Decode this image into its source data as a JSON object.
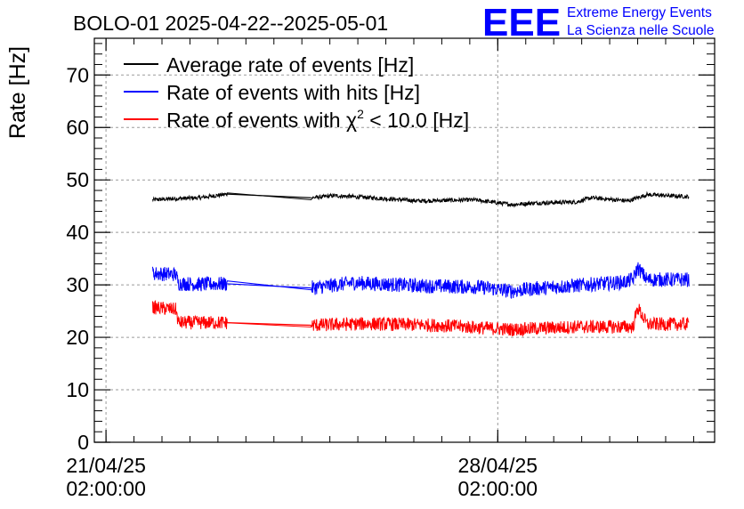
{
  "chart_data": {
    "type": "line",
    "title": "BOLO-01 2025-04-22--2025-05-01",
    "ylabel": "Rate [Hz]",
    "xlabel": "",
    "ylim": [
      0,
      77
    ],
    "yticks": [
      0,
      10,
      20,
      30,
      40,
      50,
      60,
      70
    ],
    "xlim": [
      "2025-04-20T21:00:00",
      "2025-05-01T23:00:00"
    ],
    "xticks": [
      {
        "at": "2025-04-21T02:00:00",
        "label_date": "21/04/25",
        "label_time": "02:00:00"
      },
      {
        "at": "2025-04-28T02:00:00",
        "label_date": "28/04/25",
        "label_time": "02:00:00"
      }
    ],
    "grid": true,
    "legend_position": "top-left",
    "legend": [
      {
        "name": "Average rate of events [Hz]",
        "color": "#000000"
      },
      {
        "name": "Rate of events with hits [Hz]",
        "color": "#0000ff"
      },
      {
        "name_prefix": "Rate of events with ",
        "name_symbol": "χ",
        "name_sup": "2",
        "name_suffix": " < 10.0 [Hz]",
        "color": "#ff0000"
      }
    ],
    "series": [
      {
        "key": "average",
        "color": "#000000",
        "noise": 0.4,
        "points": [
          [
            "2025-04-21T22:00:00",
            46.2
          ],
          [
            "2025-04-22T06:00:00",
            46.4
          ],
          [
            "2025-04-22T18:00:00",
            46.6
          ],
          [
            "2025-04-23T06:00:00",
            47.3
          ],
          [
            "2025-04-24T18:00:00",
            46.6
          ],
          [
            "2025-04-25T04:00:00",
            47.0
          ],
          [
            "2025-04-25T20:00:00",
            46.6
          ],
          [
            "2025-04-26T16:00:00",
            46.0
          ],
          [
            "2025-04-27T16:00:00",
            46.2
          ],
          [
            "2025-04-28T08:00:00",
            45.3
          ],
          [
            "2025-04-28T18:00:00",
            45.6
          ],
          [
            "2025-04-29T12:00:00",
            45.8
          ],
          [
            "2025-04-29T18:00:00",
            46.6
          ],
          [
            "2025-04-30T10:00:00",
            46.0
          ],
          [
            "2025-04-30T18:00:00",
            47.2
          ],
          [
            "2025-05-01T12:00:00",
            46.8
          ]
        ],
        "gaps": [
          [
            "2025-04-23T06:00:00",
            "2025-04-24T18:00:00"
          ]
        ]
      },
      {
        "key": "hits",
        "color": "#0000ff",
        "noise": 1.4,
        "points": [
          [
            "2025-04-21T22:00:00",
            32.2
          ],
          [
            "2025-04-22T08:00:00",
            32.0
          ],
          [
            "2025-04-22T09:00:00",
            30.3
          ],
          [
            "2025-04-22T18:00:00",
            30.1
          ],
          [
            "2025-04-23T06:00:00",
            30.2
          ],
          [
            "2025-04-24T18:00:00",
            29.4
          ],
          [
            "2025-04-25T12:00:00",
            30.4
          ],
          [
            "2025-04-26T18:00:00",
            29.8
          ],
          [
            "2025-04-27T18:00:00",
            29.6
          ],
          [
            "2025-04-28T08:00:00",
            28.8
          ],
          [
            "2025-04-28T18:00:00",
            29.3
          ],
          [
            "2025-04-29T12:00:00",
            29.9
          ],
          [
            "2025-04-30T08:00:00",
            30.5
          ],
          [
            "2025-04-30T12:00:00",
            31.0
          ],
          [
            "2025-04-30T14:00:00",
            33.3
          ],
          [
            "2025-04-30T18:00:00",
            31.0
          ],
          [
            "2025-05-01T12:00:00",
            31.0
          ]
        ],
        "gaps": [
          [
            "2025-04-23T06:00:00",
            "2025-04-24T18:00:00"
          ]
        ]
      },
      {
        "key": "chi2",
        "color": "#ff0000",
        "noise": 1.3,
        "points": [
          [
            "2025-04-21T22:00:00",
            25.7
          ],
          [
            "2025-04-22T08:00:00",
            25.3
          ],
          [
            "2025-04-22T09:00:00",
            22.8
          ],
          [
            "2025-04-23T06:00:00",
            22.8
          ],
          [
            "2025-04-24T18:00:00",
            22.3
          ],
          [
            "2025-04-25T18:00:00",
            22.6
          ],
          [
            "2025-04-27T00:00:00",
            22.3
          ],
          [
            "2025-04-28T08:00:00",
            21.5
          ],
          [
            "2025-04-29T12:00:00",
            22.0
          ],
          [
            "2025-04-30T08:00:00",
            22.0
          ],
          [
            "2025-04-30T12:00:00",
            22.0
          ],
          [
            "2025-04-30T14:00:00",
            25.7
          ],
          [
            "2025-04-30T18:00:00",
            22.5
          ],
          [
            "2025-05-01T12:00:00",
            22.5
          ]
        ],
        "gaps": [
          [
            "2025-04-23T06:00:00",
            "2025-04-24T18:00:00"
          ]
        ]
      }
    ]
  },
  "logo": {
    "letters": "EEE",
    "line1": "Extreme Energy Events",
    "line2": "La Scienza nelle Scuole",
    "color": "#0000ff"
  }
}
